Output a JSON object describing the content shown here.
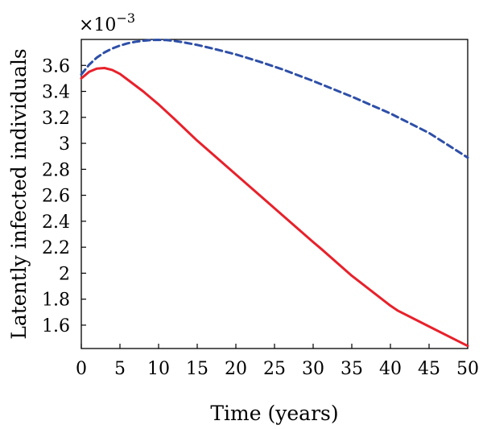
{
  "chart_data": {
    "type": "line",
    "title": "",
    "xlabel": "Time (years)",
    "ylabel": "Latently infected individuals",
    "y_exponent_prefix": "×10",
    "y_exponent_power": "−3",
    "xlim": [
      0,
      50
    ],
    "ylim": [
      1.42,
      3.8
    ],
    "x_ticks": [
      0,
      5,
      10,
      15,
      20,
      25,
      30,
      35,
      40,
      45,
      50
    ],
    "x_tick_labels": [
      "0",
      "5",
      "10",
      "15",
      "20",
      "25",
      "30",
      "35",
      "40",
      "45",
      "50"
    ],
    "y_ticks": [
      1.6,
      1.8,
      2.0,
      2.2,
      2.4,
      2.6,
      2.8,
      3.0,
      3.2,
      3.4,
      3.6
    ],
    "y_tick_labels": [
      "1.6",
      "1.8",
      "2",
      "2.2",
      "2.4",
      "2.6",
      "2.8",
      "3",
      "3.2",
      "3.4",
      "3.6"
    ],
    "grid": false,
    "legend": "none",
    "series": [
      {
        "color": "#2e4fa8",
        "style": "dashed",
        "x": [
          0,
          1,
          2,
          3,
          4,
          5,
          6,
          7,
          8,
          9,
          10,
          11,
          12,
          13,
          15,
          17,
          20,
          23,
          26,
          30,
          35,
          40,
          45,
          50
        ],
        "y": [
          3.53,
          3.605,
          3.66,
          3.7,
          3.73,
          3.753,
          3.77,
          3.782,
          3.79,
          3.795,
          3.797,
          3.795,
          3.789,
          3.78,
          3.758,
          3.73,
          3.685,
          3.63,
          3.57,
          3.48,
          3.36,
          3.23,
          3.08,
          2.89
        ]
      },
      {
        "color": "#e8212b",
        "style": "solid",
        "x": [
          0,
          1,
          2,
          3,
          4,
          5,
          6,
          8,
          10,
          12,
          15,
          20,
          25,
          30,
          31,
          35,
          40,
          41,
          45,
          50
        ],
        "y": [
          3.5,
          3.55,
          3.575,
          3.58,
          3.565,
          3.535,
          3.49,
          3.4,
          3.3,
          3.19,
          3.02,
          2.76,
          2.5,
          2.24,
          2.19,
          1.98,
          1.75,
          1.71,
          1.59,
          1.44
        ]
      }
    ]
  }
}
